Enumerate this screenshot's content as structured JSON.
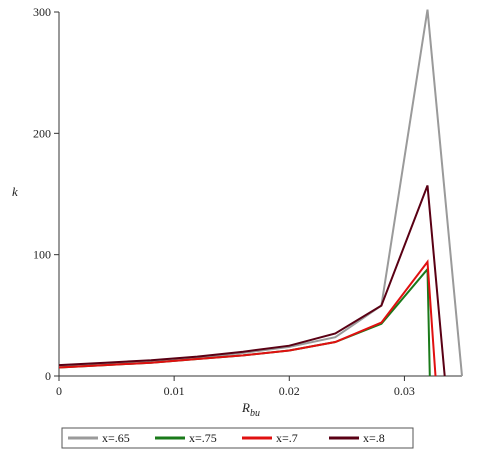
{
  "chart_data": {
    "type": "line",
    "xlabel": "R",
    "xlabel_sub": "bu",
    "ylabel": "k",
    "xlim": [
      0,
      0.035
    ],
    "ylim": [
      0,
      300
    ],
    "x_ticks": [
      0,
      0.01,
      0.02,
      0.03
    ],
    "x_tick_labels": [
      "0",
      "0.01",
      "0.02",
      "0.03"
    ],
    "y_ticks": [
      0,
      100,
      200,
      300
    ],
    "y_tick_labels": [
      "0",
      "100",
      "200",
      "300"
    ],
    "grid": false,
    "legend_position": "bottom",
    "series": [
      {
        "name": "x=.65",
        "color": "#9a9a9a",
        "x": [
          0,
          0.004,
          0.008,
          0.012,
          0.016,
          0.02,
          0.024,
          0.028,
          0.032,
          0.035
        ],
        "y": [
          8,
          10,
          12,
          15,
          19,
          24,
          32,
          58,
          302,
          0
        ]
      },
      {
        "name": "x=.75",
        "color": "#1a7a1a",
        "x": [
          0,
          0.004,
          0.008,
          0.012,
          0.016,
          0.02,
          0.024,
          0.028,
          0.032,
          0.0322
        ],
        "y": [
          7,
          9,
          11,
          14,
          17,
          21,
          28,
          43,
          88,
          0
        ]
      },
      {
        "name": "x=.7",
        "color": "#e01010",
        "x": [
          0,
          0.004,
          0.008,
          0.012,
          0.016,
          0.02,
          0.024,
          0.028,
          0.032,
          0.0327
        ],
        "y": [
          7,
          9,
          11,
          14,
          17,
          21,
          28,
          44,
          94,
          0
        ]
      },
      {
        "name": "x=.8",
        "color": "#5a0014",
        "x": [
          0,
          0.004,
          0.008,
          0.012,
          0.016,
          0.02,
          0.024,
          0.028,
          0.032,
          0.0335
        ],
        "y": [
          9,
          11,
          13,
          16,
          20,
          25,
          35,
          58,
          157,
          0
        ]
      }
    ]
  }
}
